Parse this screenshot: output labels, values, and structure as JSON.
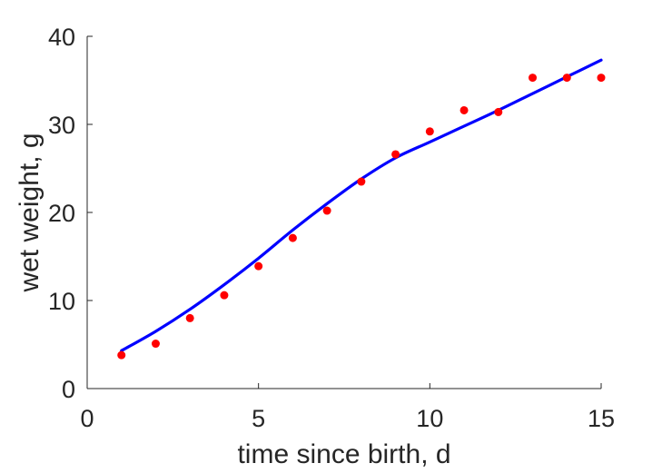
{
  "chart_data": {
    "type": "scatter",
    "title": "",
    "xlabel": "time since birth, d",
    "ylabel": "wet weight, g",
    "xlim": [
      0,
      15
    ],
    "ylim": [
      0,
      40
    ],
    "xticks": [
      "0",
      "5",
      "10",
      "15"
    ],
    "yticks": [
      "0",
      "10",
      "20",
      "30",
      "40"
    ],
    "grid": false,
    "legend": "none",
    "series": [
      {
        "kind": "scatter",
        "color": "#ff0000",
        "x": [
          1,
          2,
          3,
          4,
          5,
          6,
          7,
          8,
          9,
          10,
          11,
          12,
          13,
          14,
          15
        ],
        "y": [
          3.8,
          5.1,
          8.0,
          10.6,
          13.9,
          17.1,
          20.2,
          23.5,
          26.6,
          29.2,
          31.6,
          31.4,
          35.3,
          35.3,
          35.3
        ]
      },
      {
        "kind": "line",
        "color": "#0000ff",
        "x": [
          1,
          2,
          3,
          4,
          5,
          6,
          7,
          8,
          9,
          10,
          11,
          12,
          13,
          14,
          15
        ],
        "y": [
          4.3,
          6.5,
          9.0,
          11.8,
          14.8,
          18.0,
          21.0,
          23.8,
          26.2,
          28.0,
          29.8,
          31.6,
          33.5,
          35.4,
          37.3
        ]
      }
    ]
  }
}
